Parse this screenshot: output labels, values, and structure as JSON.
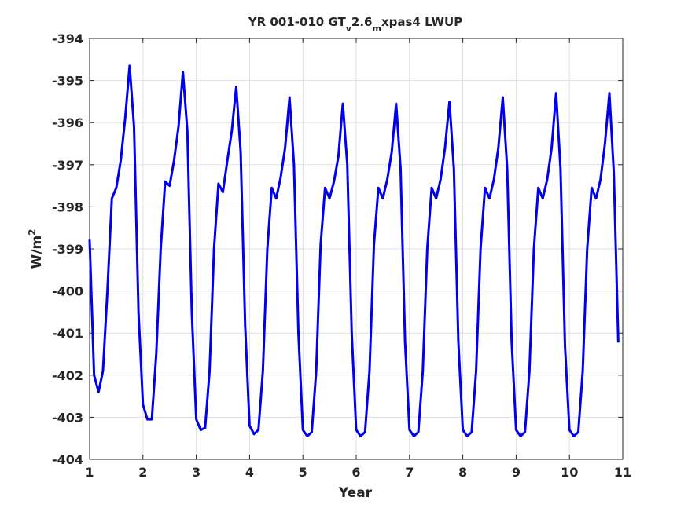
{
  "chart_data": {
    "type": "line",
    "title": {
      "pre": "YR 001-010 GT",
      "sub1": "v",
      "mid": "2.6",
      "sub2": "m",
      "post": "xpas4 LWUP"
    },
    "xlabel": "Year",
    "ylabel": {
      "base": "W/m",
      "sup": "2"
    },
    "xlim": [
      1,
      11
    ],
    "ylim": [
      -404,
      -394
    ],
    "xticks": [
      1,
      2,
      3,
      4,
      5,
      6,
      7,
      8,
      9,
      10,
      11
    ],
    "yticks": [
      -404,
      -403,
      -402,
      -401,
      -400,
      -399,
      -398,
      -397,
      -396,
      -395,
      -394
    ],
    "grid": true,
    "line_color": "#0000ee",
    "series": [
      {
        "values_per_year": 12,
        "x_start": 1.0,
        "x_step": 0.08333,
        "values": [
          -398.8,
          -402.0,
          -402.4,
          -401.9,
          -400.0,
          -397.8,
          -397.55,
          -396.9,
          -395.9,
          -394.65,
          -396.1,
          -400.5,
          -402.7,
          -403.05,
          -403.05,
          -401.5,
          -399.0,
          -397.4,
          -397.5,
          -396.9,
          -396.1,
          -394.8,
          -396.2,
          -400.5,
          -403.05,
          -403.3,
          -403.25,
          -401.9,
          -399.0,
          -397.45,
          -397.65,
          -396.9,
          -396.2,
          -395.15,
          -396.7,
          -400.8,
          -403.2,
          -403.4,
          -403.3,
          -401.9,
          -399.0,
          -397.55,
          -397.8,
          -397.3,
          -396.6,
          -395.4,
          -397.0,
          -401.0,
          -403.3,
          -403.45,
          -403.35,
          -401.9,
          -398.9,
          -397.55,
          -397.8,
          -397.4,
          -396.8,
          -395.55,
          -397.0,
          -401.0,
          -403.3,
          -403.45,
          -403.35,
          -401.9,
          -398.9,
          -397.55,
          -397.8,
          -397.35,
          -396.7,
          -395.55,
          -397.1,
          -401.2,
          -403.3,
          -403.45,
          -403.35,
          -401.9,
          -399.0,
          -397.55,
          -397.8,
          -397.35,
          -396.6,
          -395.5,
          -397.1,
          -401.2,
          -403.3,
          -403.45,
          -403.35,
          -401.9,
          -399.0,
          -397.55,
          -397.8,
          -397.35,
          -396.6,
          -395.4,
          -397.1,
          -401.2,
          -403.3,
          -403.45,
          -403.35,
          -401.9,
          -399.0,
          -397.55,
          -397.8,
          -397.35,
          -396.6,
          -395.3,
          -397.1,
          -401.3,
          -403.3,
          -403.45,
          -403.35,
          -401.9,
          -399.0,
          -397.55,
          -397.8,
          -397.35,
          -396.5,
          -395.3,
          -397.2,
          -401.2
        ]
      }
    ]
  }
}
